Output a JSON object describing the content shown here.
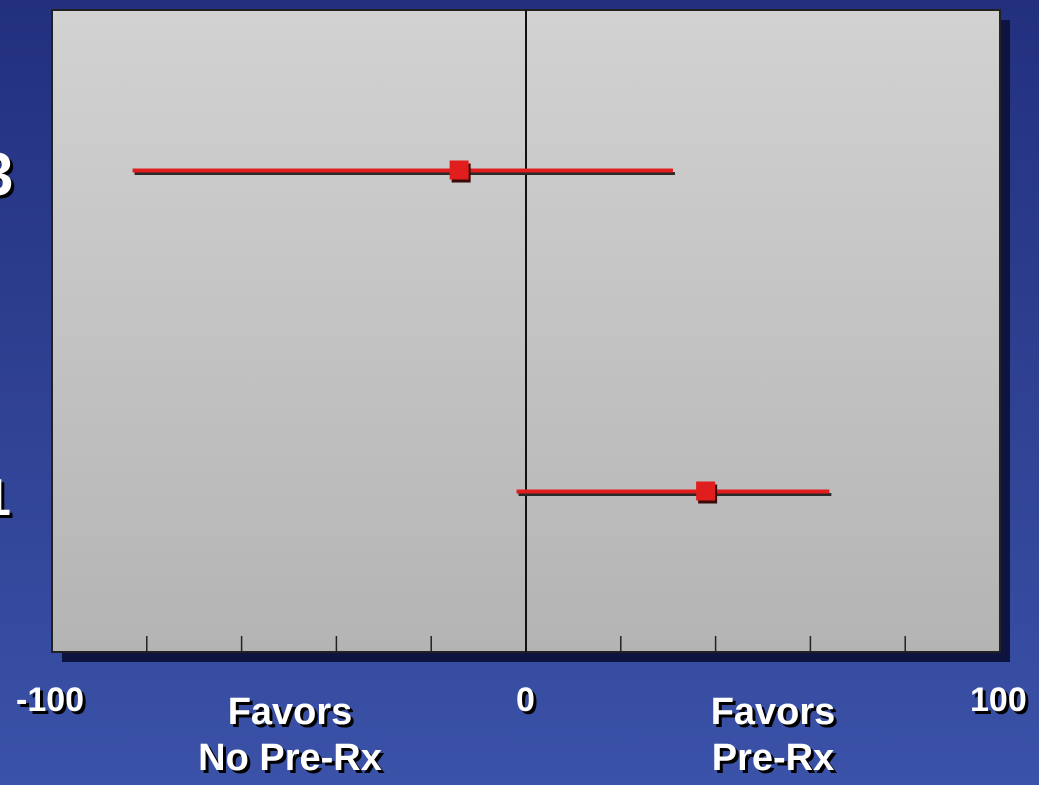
{
  "chart_data": {
    "type": "forest",
    "xlim": [
      -100,
      100
    ],
    "tick_step": 20,
    "x_tick_labels": [
      "-100",
      "0",
      "100"
    ],
    "reference_line": 0,
    "rows": [
      {
        "label_fragment": "3",
        "estimate": -14,
        "ci_low": -83,
        "ci_high": 31
      },
      {
        "label_fragment": "1",
        "estimate": 38,
        "ci_low": -2,
        "ci_high": 64
      }
    ],
    "left_annotation": "Favors\nNo Pre-Rx",
    "right_annotation": "Favors\nPre-Rx",
    "colors": {
      "marker": "#e01e1e",
      "ci_line": "#e01e1e",
      "plot_bg_top": "#d2d2d2",
      "plot_bg_bottom": "#b2b2b2",
      "text": "#ffffff"
    }
  }
}
